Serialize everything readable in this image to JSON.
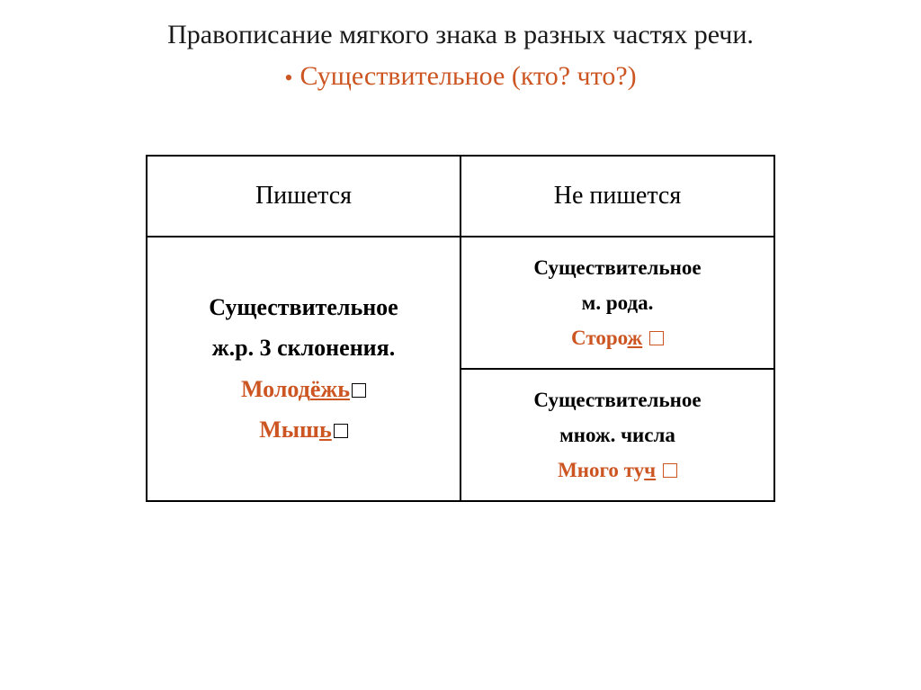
{
  "title": "Правописание мягкого знака в разных частях речи.",
  "subtitle": "Существительное (кто? что?)",
  "colors": {
    "accent": "#cc5522",
    "text": "#1a1a1a",
    "border": "#000000",
    "bg": "#ffffff"
  },
  "table": {
    "headers": {
      "left": "Пишется",
      "right": "Не пишется"
    },
    "left_cell": {
      "line1": "Существительное",
      "line2": "ж.р. 3 склонения.",
      "ex1_stem": "Молод",
      "ex1_suffix": "ёжь",
      "ex2_stem": "Мыш",
      "ex2_suffix": "ь"
    },
    "right_top": {
      "line1": "Существительное",
      "line2": "м. рода.",
      "ex_stem": "Сторо",
      "ex_suffix": "ж"
    },
    "right_bottom": {
      "line1": "Существительное",
      "line2": "множ. числа",
      "ex_stem": "Много ту",
      "ex_suffix": "ч"
    }
  }
}
